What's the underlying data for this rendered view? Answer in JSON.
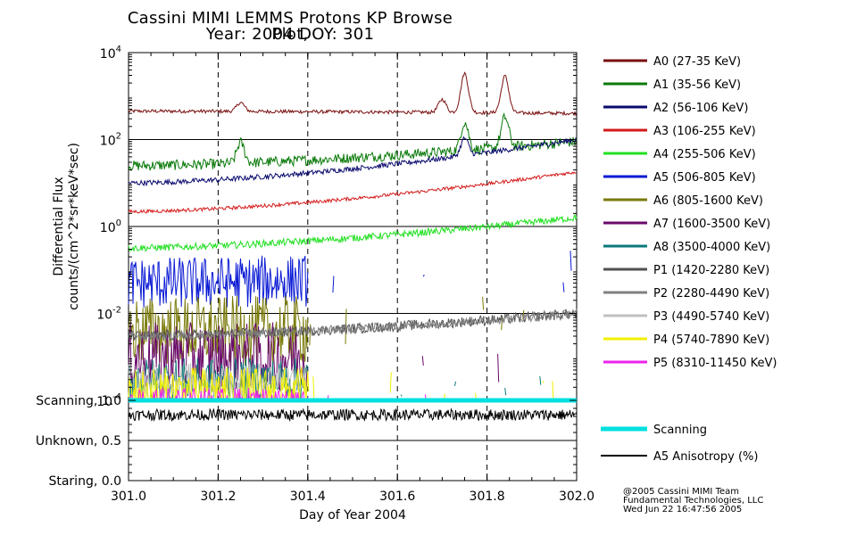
{
  "title": {
    "line1": "Cassini MIMI LEMMS Protons KP Browse Plot,",
    "line2": "Year: 2004 DOY: 301"
  },
  "chart_data": [
    {
      "type": "line",
      "panel": "differential-flux",
      "xlabel": "Day of Year 2004",
      "ylabel_line1": "Differential Flux",
      "ylabel_line2": "counts/(cm^2*sr*keV*sec)",
      "xlim": [
        301.0,
        302.0
      ],
      "ylim": [
        0.0001,
        10000
      ],
      "yscale": "log",
      "x_ticks": [
        "301.0",
        "301.2",
        "301.4",
        "301.6",
        "301.8",
        "302.0"
      ],
      "y_ticks": [
        {
          "base": "10",
          "exp": "4"
        },
        {
          "base": "10",
          "exp": "2"
        },
        {
          "base": "10",
          "exp": "0"
        },
        {
          "base": "10",
          "exp": "-2"
        },
        {
          "base": "10",
          "exp": "-4"
        }
      ],
      "dashed_gridlines_x": [
        301.2,
        301.4,
        301.6,
        301.8
      ],
      "series": [
        {
          "name": "A0 (27-35 KeV)",
          "color": "#7a1010",
          "baseline": 450,
          "end": 400,
          "noise": 0.04,
          "features": [
            {
              "x": 301.25,
              "factor": 1.6
            },
            {
              "x": 301.7,
              "factor": 2.0
            },
            {
              "x": 301.75,
              "factor": 8.0
            },
            {
              "x": 301.84,
              "factor": 7.0
            }
          ]
        },
        {
          "name": "A1 (35-56 KeV)",
          "color": "#0a7a0a",
          "baseline": 25,
          "end": 90,
          "noise": 0.12,
          "features": [
            {
              "x": 301.25,
              "factor": 3.0
            },
            {
              "x": 301.75,
              "factor": 4.5
            },
            {
              "x": 301.84,
              "factor": 5.0
            }
          ]
        },
        {
          "name": "A2 (56-106 KeV)",
          "color": "#0a0a6e",
          "baseline": 10,
          "end": 100,
          "noise": 0.06,
          "features": [
            {
              "x": 301.75,
              "factor": 2.5
            }
          ]
        },
        {
          "name": "A3 (106-255 KeV)",
          "color": "#d41a1a",
          "baseline": 2.2,
          "end": 18,
          "noise": 0.04,
          "features": []
        },
        {
          "name": "A4 (255-506 KeV)",
          "color": "#22e022",
          "baseline": 0.32,
          "end": 1.6,
          "noise": 0.08,
          "features": []
        },
        {
          "name": "A5 (506-805 KeV)",
          "color": "#0a1ad4",
          "baseline": 0.05,
          "end": 0.09,
          "noise": 0.6,
          "sparse_after": 301.4,
          "features": []
        },
        {
          "name": "A6 (805-1600 KeV)",
          "color": "#7a7a0a",
          "baseline": 0.004,
          "end": 0.004,
          "noise": 0.8,
          "sparse_after": 301.4,
          "features": []
        },
        {
          "name": "A7 (1600-3500 KeV)",
          "color": "#6a0a6a",
          "baseline": 0.001,
          "end": 0.001,
          "noise": 0.8,
          "sparse_after": 301.4,
          "features": []
        },
        {
          "name": "A8 (3500-4000 KeV)",
          "color": "#0a7a7a",
          "baseline": 0.0003,
          "end": 0.0003,
          "noise": 0.5,
          "sparse_after": 301.4,
          "features": []
        },
        {
          "name": "P1 (1420-2280 KeV)",
          "color": "#505050",
          "baseline": 0.003,
          "end": 0.01,
          "noise": 0.12,
          "features": []
        },
        {
          "name": "P2 (2280-4490 KeV)",
          "color": "#808080",
          "baseline": 0.003,
          "end": 0.01,
          "noise": 0.1,
          "features": []
        },
        {
          "name": "P3 (4490-5740 KeV)",
          "color": "#c0c0c0",
          "baseline": 0.0003,
          "end": 0.0003,
          "noise": 0.4,
          "sparse_after": 301.4,
          "features": []
        },
        {
          "name": "P4 (5740-7890 KeV)",
          "color": "#f0f000",
          "baseline": 0.00015,
          "end": 0.00015,
          "noise": 0.6,
          "sparse_after": 301.4,
          "features": []
        },
        {
          "name": "P5 (8310-11450 KeV)",
          "color": "#ee22ee",
          "baseline": 0.0001,
          "end": 0.0001,
          "noise": 0.3,
          "sparse_after": 301.4,
          "features": []
        }
      ]
    },
    {
      "type": "line",
      "panel": "scanning-mode",
      "xlim": [
        301.0,
        302.0
      ],
      "ylim": [
        0.0,
        1.0
      ],
      "y_ticks": [
        "Scanning, 1.0",
        "Unknown, 0.5",
        "Staring, 0.0"
      ],
      "x_ticks": [
        "301.0",
        "301.2",
        "301.4",
        "301.6",
        "301.8",
        "302.0"
      ],
      "series": [
        {
          "name": "Scanning",
          "color": "#00e0e0",
          "value": 1.0
        },
        {
          "name": "A5 Anisotropy (%)",
          "color": "#000000",
          "baseline": 0.82,
          "noise": 0.07
        }
      ]
    }
  ],
  "credits": {
    "line1": "@2005 Cassini MIMI Team",
    "line2": "Fundamental Technologies, LLC",
    "line3": "Wed Jun 22 16:47:56 2005"
  }
}
